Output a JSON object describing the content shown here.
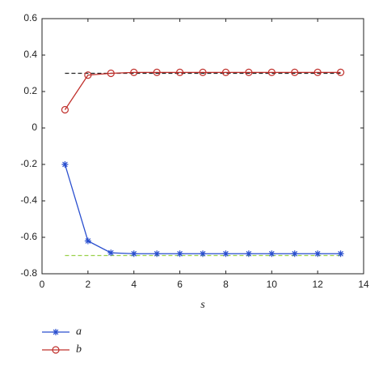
{
  "chart_data": {
    "type": "line",
    "xlabel": "s",
    "x": [
      1,
      2,
      3,
      4,
      5,
      6,
      7,
      8,
      9,
      10,
      11,
      12,
      13
    ],
    "series": [
      {
        "name": "a",
        "color": "#2a4fcf",
        "marker": "asterisk",
        "values": [
          -0.2,
          -0.62,
          -0.685,
          -0.69,
          -0.69,
          -0.69,
          -0.69,
          -0.69,
          -0.69,
          -0.69,
          -0.69,
          -0.69,
          -0.69
        ]
      },
      {
        "name": "b",
        "color": "#c0302c",
        "marker": "circle",
        "values": [
          0.1,
          0.29,
          0.3,
          0.305,
          0.305,
          0.305,
          0.305,
          0.305,
          0.305,
          0.305,
          0.305,
          0.305,
          0.305
        ]
      }
    ],
    "hlines": [
      {
        "value": 0.3,
        "color": "#222222"
      },
      {
        "value": -0.7,
        "color": "#9ad14b"
      }
    ],
    "xlim": [
      0,
      14
    ],
    "xticks": [
      0,
      2,
      4,
      6,
      8,
      10,
      12,
      14
    ],
    "ylim": [
      -0.8,
      0.6
    ],
    "yticks": [
      -0.8,
      -0.6,
      -0.4,
      -0.2,
      0,
      0.2,
      0.4,
      0.6
    ],
    "legend": "below-left"
  }
}
